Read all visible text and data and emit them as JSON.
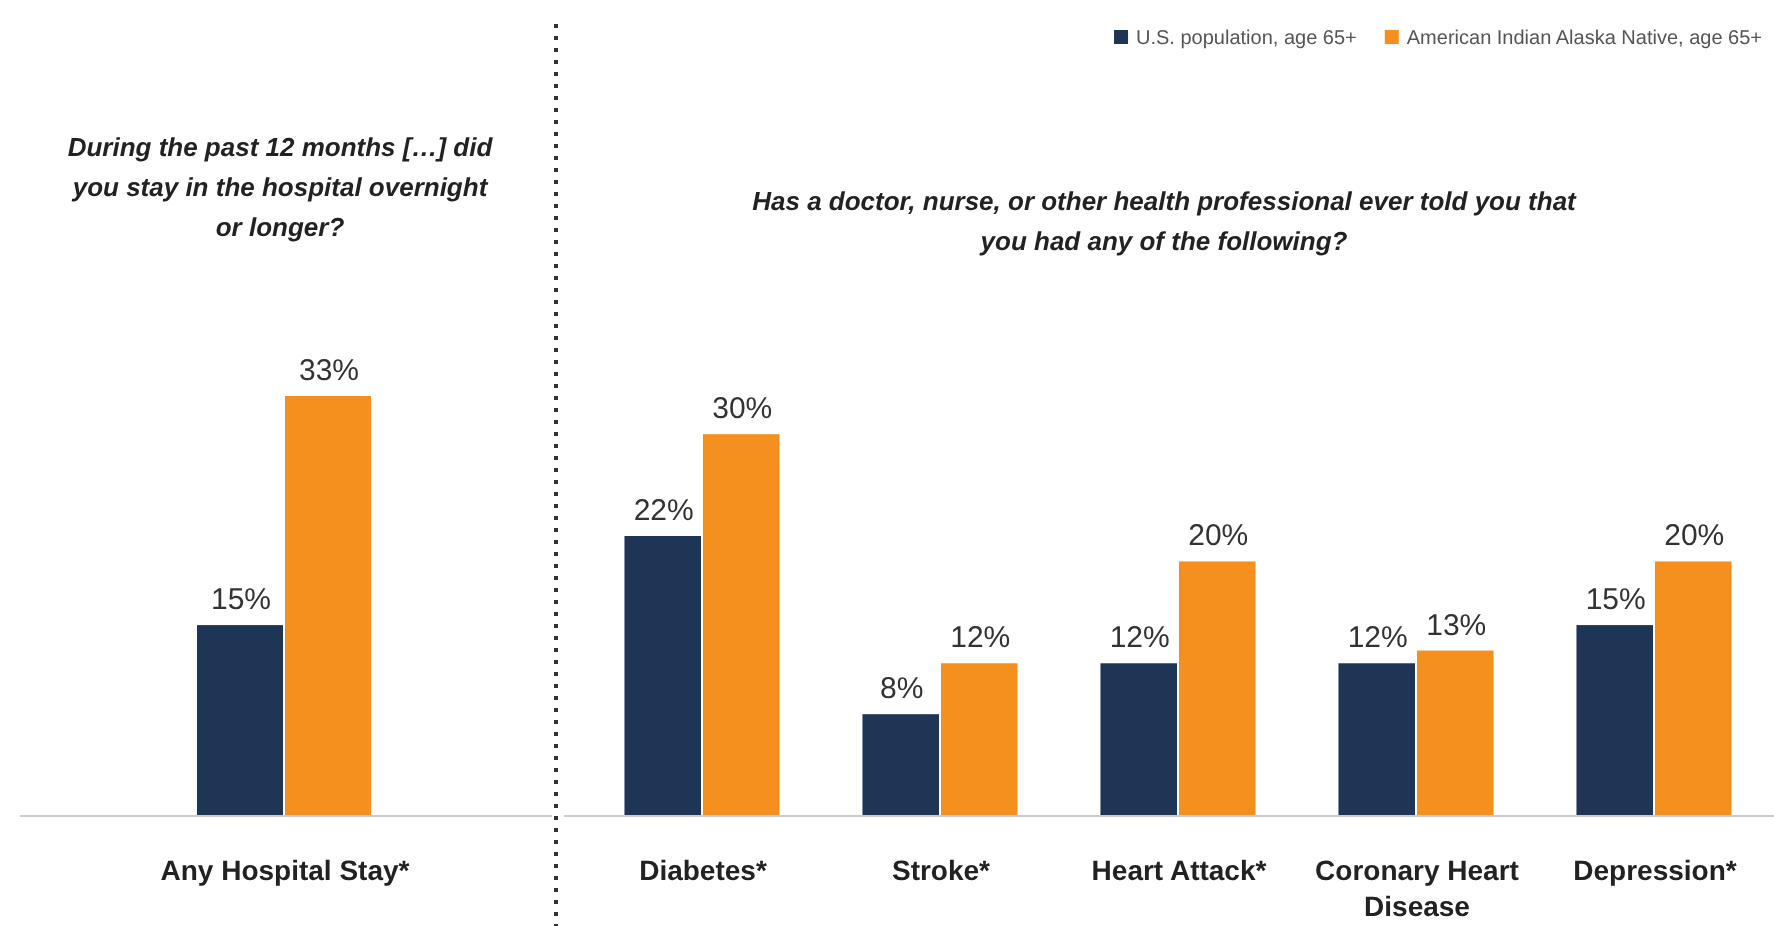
{
  "chart_data": [
    {
      "type": "bar",
      "title": "During the past 12 months […] did you stay in the hospital overnight or longer?",
      "categories": [
        "Any Hospital Stay*"
      ],
      "series": [
        {
          "color": "#1f3556",
          "values": [
            15
          ],
          "value_labels": [
            "15%"
          ]
        },
        {
          "color": "#f5901e",
          "values": [
            33
          ],
          "value_labels": [
            "33%"
          ]
        }
      ],
      "tick_labels": "x"
    },
    {
      "type": "bar",
      "title": "Has a doctor, nurse, or other health professional ever told you that you had any of the following?",
      "categories": [
        "Diabetes*",
        "Stroke*",
        "Heart Attack*",
        "Coronary Heart Disease",
        "Depression*"
      ],
      "series": [
        {
          "name": "U.S. population, age 65+",
          "color": "#1f3556",
          "values": [
            22,
            8,
            12,
            12,
            15
          ],
          "value_labels": [
            "22%",
            "8%",
            "12%",
            "12%",
            "15%"
          ]
        },
        {
          "name": "American Indian Alaska Native, age 65+",
          "color": "#f5901e",
          "values": [
            30,
            12,
            20,
            13,
            20
          ],
          "value_labels": [
            "30%",
            "12%",
            "20%",
            "13%",
            "20%"
          ]
        }
      ],
      "tick_labels": "x",
      "legend": "top right"
    }
  ]
}
